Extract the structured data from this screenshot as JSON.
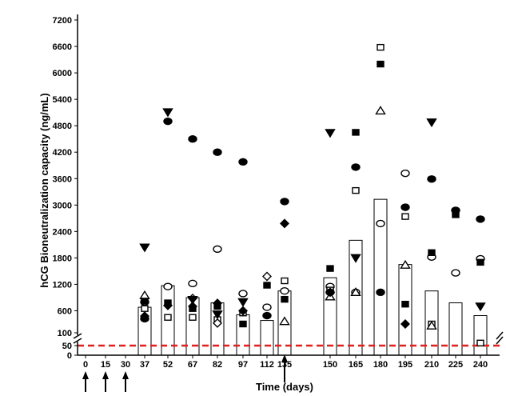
{
  "chart_data": {
    "type": "bar",
    "xlabel": "Time (days)",
    "ylabel": "hCG Bioneutralization capacity  (ng/mL)",
    "categories": [
      "0",
      "15",
      "30",
      "37",
      "52",
      "67",
      "82",
      "97",
      "112",
      "135",
      "150",
      "165",
      "180",
      "195",
      "210",
      "225",
      "240"
    ],
    "y_ticks_upper": [
      "7200",
      "6600",
      "6000",
      "5400",
      "4800",
      "4200",
      "3600",
      "3000",
      "2400",
      "1800",
      "1200",
      "600",
      "100"
    ],
    "y_ticks_lower": [
      "50",
      "0"
    ],
    "ylim": [
      0,
      7200
    ],
    "axis_break": "between 0 and 100",
    "reference_line": {
      "value": 50,
      "style": "dashed",
      "color": "#e0201c"
    },
    "injection_days": [
      "0",
      "15",
      "30",
      "112"
    ],
    "bars": {
      "name": "mean",
      "values": [
        null,
        null,
        null,
        680,
        1170,
        900,
        780,
        510,
        380,
        1050,
        1350,
        2200,
        3130,
        1650,
        1050,
        780,
        490
      ]
    },
    "series": [
      {
        "marker": "filled-circle",
        "values": [
          null,
          null,
          null,
          420,
          4900,
          4500,
          4200,
          3980,
          490,
          3080,
          1020,
          3860,
          1020,
          2950,
          3590,
          2880,
          2680
        ]
      },
      {
        "marker": "open-circle",
        "values": [
          null,
          null,
          null,
          800,
          1150,
          1220,
          2000,
          990,
          680,
          1050,
          1150,
          1020,
          2580,
          3720,
          1820,
          1460,
          1780
        ]
      },
      {
        "marker": "filled-square",
        "values": [
          null,
          null,
          null,
          820,
          780,
          650,
          700,
          300,
          1180,
          860,
          1560,
          4650,
          6200,
          750,
          1920,
          2780,
          1700
        ]
      },
      {
        "marker": "open-square",
        "values": [
          null,
          null,
          null,
          650,
          450,
          450,
          400,
          550,
          null,
          1280,
          1070,
          3330,
          6580,
          2740,
          300,
          null,
          60
        ]
      },
      {
        "marker": "filled-diamond",
        "values": [
          null,
          null,
          null,
          480,
          720,
          700,
          770,
          600,
          null,
          2580,
          1020,
          null,
          null,
          300,
          null,
          null,
          null
        ]
      },
      {
        "marker": "open-diamond",
        "values": [
          null,
          null,
          null,
          880,
          null,
          880,
          320,
          null,
          1380,
          null,
          null,
          null,
          null,
          null,
          null,
          null,
          null
        ]
      },
      {
        "marker": "filled-triangle-down",
        "values": [
          null,
          null,
          null,
          2040,
          5110,
          850,
          520,
          800,
          null,
          null,
          4640,
          1800,
          null,
          null,
          4880,
          null,
          700
        ]
      },
      {
        "marker": "open-triangle-up",
        "values": [
          null,
          null,
          null,
          950,
          null,
          null,
          null,
          null,
          null,
          360,
          920,
          1020,
          5140,
          1640,
          260,
          null,
          null
        ]
      }
    ],
    "colors": {
      "reference_line": "#e0201c",
      "marks": "#000000",
      "bar_fill": "#ffffff"
    }
  }
}
